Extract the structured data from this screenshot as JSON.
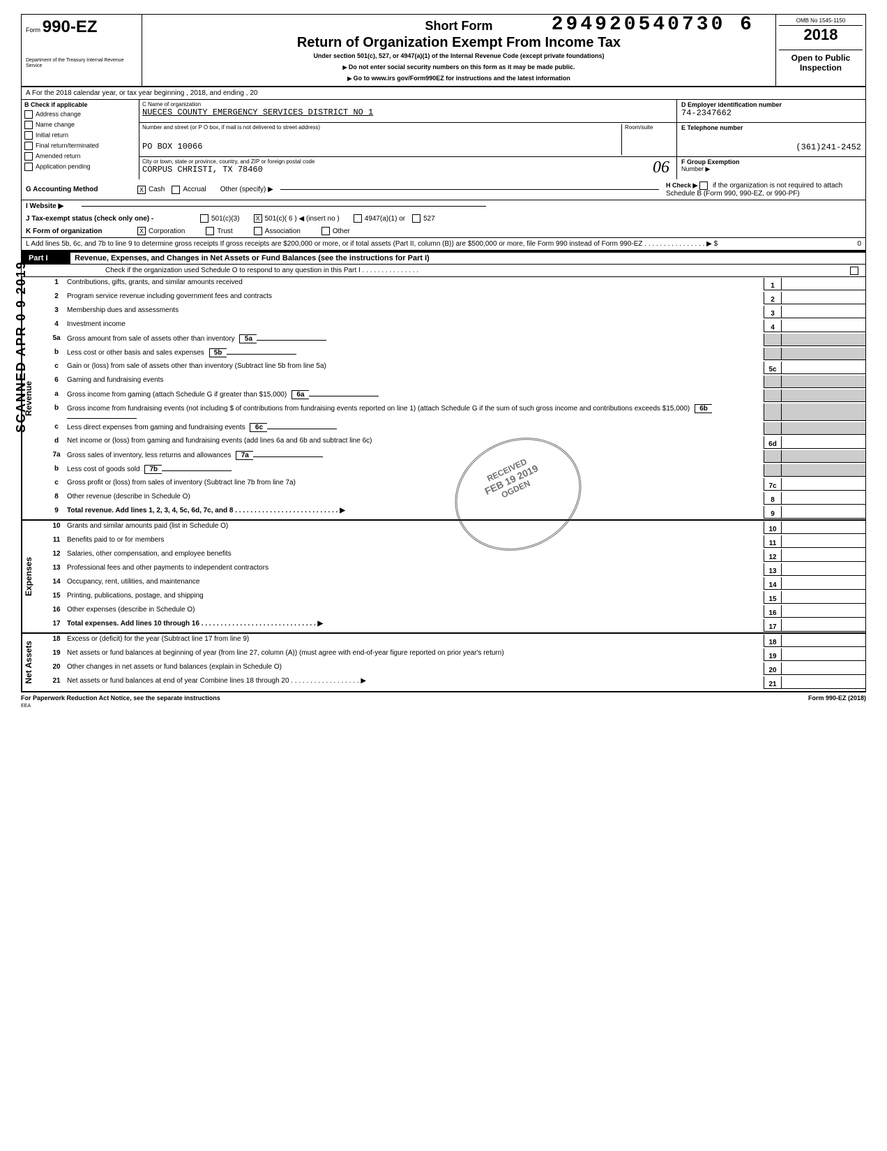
{
  "top_number": "294920540730 6",
  "omb": "OMB No 1545-1150",
  "year": "2018",
  "form_label": "Form",
  "form_number": "990-EZ",
  "dept": "Department of the Treasury\nInternal Revenue Service",
  "title_short": "Short Form",
  "title_main": "Return of Organization Exempt From Income Tax",
  "subtitle": "Under section 501(c), 527, or 4947(a)(1) of the Internal Revenue Code (except private foundations)",
  "instr1": "Do not enter social security numbers on this form as it may be made public.",
  "instr2": "Go to www.irs gov/Form990EZ for instructions and the latest information",
  "open_public": "Open to Public Inspection",
  "row_a": "A  For the 2018 calendar year, or tax year beginning                                                           , 2018, and ending                                              , 20",
  "b_label": "B  Check if applicable",
  "b_items": [
    "Address change",
    "Name change",
    "Initial return",
    "Final return/terminated",
    "Amended return",
    "Application pending"
  ],
  "c_label": "C   Name of organization",
  "org_name": "NUECES COUNTY EMERGENCY SERVICES DISTRICT NO 1",
  "addr_label": "Number and street (or P O  box, if mail is not delivered to street address)",
  "room_label": "Room/suite",
  "addr": "PO BOX 10066",
  "city_label": "City or town, state or province, country, and ZIP or foreign postal code",
  "city": "Corpus Christi, TX 78460",
  "handwritten": "06",
  "d_label": "D  Employer identification number",
  "ein": "74-2347662",
  "e_label": "E  Telephone number",
  "phone": "(361)241-2452",
  "f_label": "F  Group Exemption",
  "f_sub": "Number  ▶",
  "g_label": "G  Accounting Method",
  "g_cash": "Cash",
  "g_accrual": "Accrual",
  "g_other": "Other (specify) ▶",
  "h_label": "H  Check ▶",
  "h_text": "if the organization is not required to attach Schedule B (Form 990, 990-EZ, or 990-PF)",
  "i_label": "I   Website ▶",
  "j_label": "J   Tax-exempt status (check only one) -",
  "j_opts": [
    "501(c)(3)",
    "501(c)( 6  )  ◀ (insert no )",
    "4947(a)(1) or",
    "527"
  ],
  "k_label": "K  Form of organization",
  "k_opts": [
    "Corporation",
    "Trust",
    "Association",
    "Other"
  ],
  "l_text": "L  Add lines 5b, 6c, and 7b to line 9 to determine gross receipts  If gross receipts are $200,000 or more, or if total assets (Part II, column (B)) are $500,000 or more, file Form 990 instead of Form 990-EZ    . . . . . . . . . . . . . . . .  ▶ $",
  "l_value": "0",
  "part1_label": "Part I",
  "part1_title": "Revenue, Expenses, and Changes in Net Assets or Fund Balances (see the instructions for Part I)",
  "check_line": "Check if the organization used Schedule O to respond to any question in this Part I    . . . . . .         . . . .    . . . . .",
  "stamp_text": "RECEIVED\nFEB 19 2019\nOGDEN",
  "scanned_text": "SCANNED APR 0 9 2019",
  "revenue_side": "Revenue",
  "expenses_side": "Expenses",
  "netassets_side": "Net Assets",
  "lines_rev": [
    {
      "n": "1",
      "t": "Contributions, gifts, grants, and similar amounts received",
      "box": "1"
    },
    {
      "n": "2",
      "t": "Program service revenue including government fees and contracts",
      "box": "2"
    },
    {
      "n": "3",
      "t": "Membership dues and assessments",
      "box": "3"
    },
    {
      "n": "4",
      "t": "Investment income",
      "box": "4"
    },
    {
      "n": "5a",
      "t": "Gross amount from sale of assets other than inventory",
      "inner": "5a"
    },
    {
      "n": "b",
      "t": "Less  cost or other basis and sales expenses",
      "inner": "5b"
    },
    {
      "n": "c",
      "t": "Gain or (loss) from sale of assets other than inventory (Subtract line 5b from line 5a)",
      "box": "5c"
    },
    {
      "n": "6",
      "t": "Gaming and fundraising events"
    },
    {
      "n": "a",
      "t": "Gross income from gaming (attach Schedule G if greater than $15,000)",
      "inner": "6a"
    },
    {
      "n": "b",
      "t": "Gross income from fundraising events (not including       $                                           of contributions from fundraising events reported on line 1) (attach Schedule G if the sum of such gross income and contributions exceeds $15,000)",
      "inner": "6b"
    },
    {
      "n": "c",
      "t": "Less  direct expenses from gaming and fundraising events",
      "inner": "6c"
    },
    {
      "n": "d",
      "t": "Net income or (loss) from gaming and fundraising events (add lines 6a and 6b and subtract line 6c)",
      "box": "6d"
    },
    {
      "n": "7a",
      "t": "Gross sales of inventory, less returns and allowances",
      "inner": "7a"
    },
    {
      "n": "b",
      "t": "Less  cost of goods sold",
      "inner": "7b"
    },
    {
      "n": "c",
      "t": "Gross profit or (loss) from sales of inventory (Subtract line 7b from line 7a)",
      "box": "7c"
    },
    {
      "n": "8",
      "t": "Other revenue (describe in Schedule O)",
      "box": "8"
    },
    {
      "n": "9",
      "t": "Total revenue. Add lines 1, 2, 3, 4, 5c, 6d, 7c, and 8   . . . . . . . . . . . . . .   . . .     . . . . . . . . . . ▶",
      "bold": true,
      "box": "9"
    }
  ],
  "lines_exp": [
    {
      "n": "10",
      "t": "Grants and similar amounts paid (list in Schedule O)",
      "box": "10"
    },
    {
      "n": "11",
      "t": "Benefits paid to or for members",
      "box": "11"
    },
    {
      "n": "12",
      "t": "Salaries, other compensation, and employee benefits",
      "box": "12"
    },
    {
      "n": "13",
      "t": "Professional fees and other payments to independent contractors",
      "box": "13"
    },
    {
      "n": "14",
      "t": "Occupancy, rent, utilities, and maintenance",
      "box": "14"
    },
    {
      "n": "15",
      "t": "Printing, publications, postage, and shipping",
      "box": "15"
    },
    {
      "n": "16",
      "t": "Other expenses (describe in Schedule O)",
      "box": "16"
    },
    {
      "n": "17",
      "t": "Total expenses. Add lines 10 through 16   . . . . .       . . . . . . . . . . . . . . . . . . . . . . . . . ▶",
      "bold": true,
      "box": "17"
    }
  ],
  "lines_net": [
    {
      "n": "18",
      "t": "Excess or (deficit) for the year (Subtract line 17 from line 9)",
      "box": "18"
    },
    {
      "n": "19",
      "t": "Net assets or fund balances at beginning of year (from line 27, column (A)) (must agree with end-of-year figure reported on prior year's return)",
      "box": "19"
    },
    {
      "n": "20",
      "t": "Other changes in net assets or fund balances (explain in Schedule O)",
      "box": "20"
    },
    {
      "n": "21",
      "t": "Net assets or fund balances at end of year  Combine lines 18 through 20   .       . . . . . . . . . . . . . . . . . ▶",
      "box": "21"
    }
  ],
  "footer_left": "For Paperwork Reduction Act Notice, see the separate instructions",
  "footer_eea": "EEA",
  "footer_right": "Form 990-EZ (2018)"
}
